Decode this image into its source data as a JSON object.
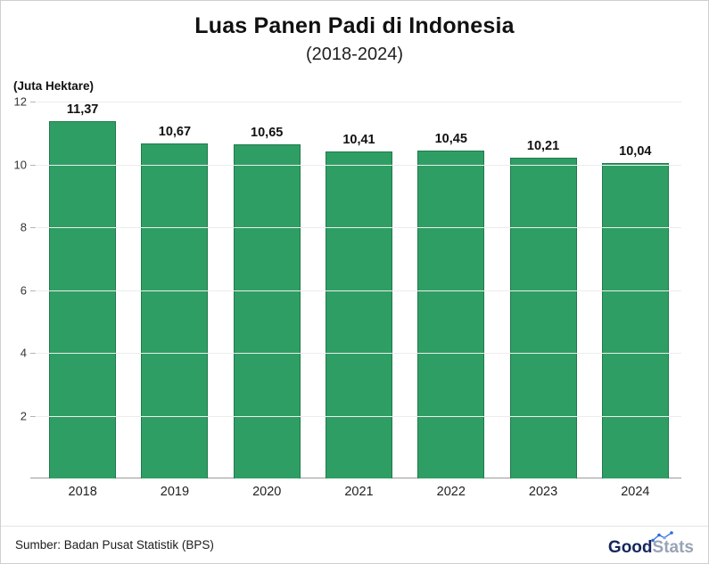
{
  "header": {
    "title": "Luas Panen Padi di Indonesia",
    "subtitle": "(2018-2024)"
  },
  "chart": {
    "unit_label": "(Juta Hektare)",
    "bar_color": "#2f9e64",
    "bar_border_color": "#1f7a4d",
    "gridline_color": "#ececec",
    "baseline_color": "#9b9b9b"
  },
  "chart_data": {
    "type": "bar",
    "title": "Luas Panen Padi di Indonesia",
    "subtitle": "(2018-2024)",
    "categories": [
      "2018",
      "2019",
      "2020",
      "2021",
      "2022",
      "2023",
      "2024"
    ],
    "values": [
      11.37,
      10.67,
      10.65,
      10.41,
      10.45,
      10.21,
      10.04
    ],
    "value_labels": [
      "11,37",
      "10,67",
      "10,65",
      "10,41",
      "10,45",
      "10,21",
      "10,04"
    ],
    "xlabel": "",
    "ylabel": "(Juta Hektare)",
    "ylim": [
      0,
      12
    ],
    "yticks_shown": [
      2,
      4,
      6,
      8,
      10,
      12
    ],
    "grid": true,
    "legend": false
  },
  "footer": {
    "source": "Sumber: Badan Pusat Statistik (BPS)",
    "logo_good": "Good",
    "logo_stats": "Stats"
  }
}
